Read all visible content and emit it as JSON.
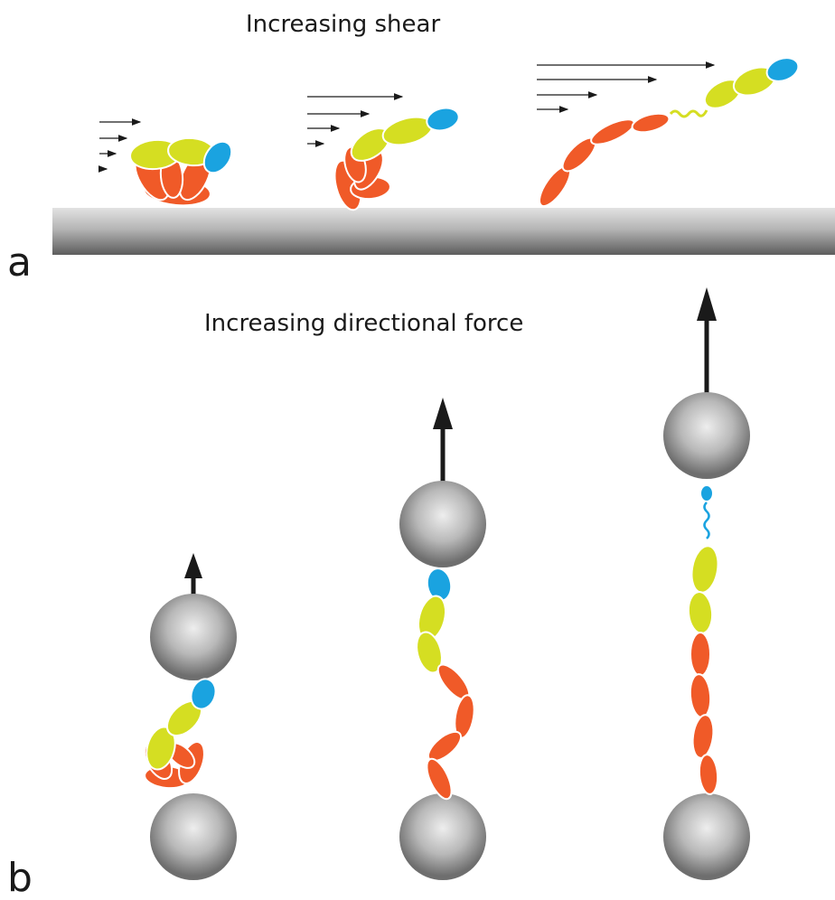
{
  "panel_a": {
    "title": "Increasing shear",
    "letter": "a"
  },
  "panel_b": {
    "title": "Increasing directional force",
    "letter": "b"
  },
  "colors": {
    "orange_domain": "#f05a28",
    "yellow_domain": "#d5de22",
    "blue_domain": "#1aa3e0",
    "bead_gray": "#9a9a9a",
    "arrow": "#1a1a1a"
  }
}
